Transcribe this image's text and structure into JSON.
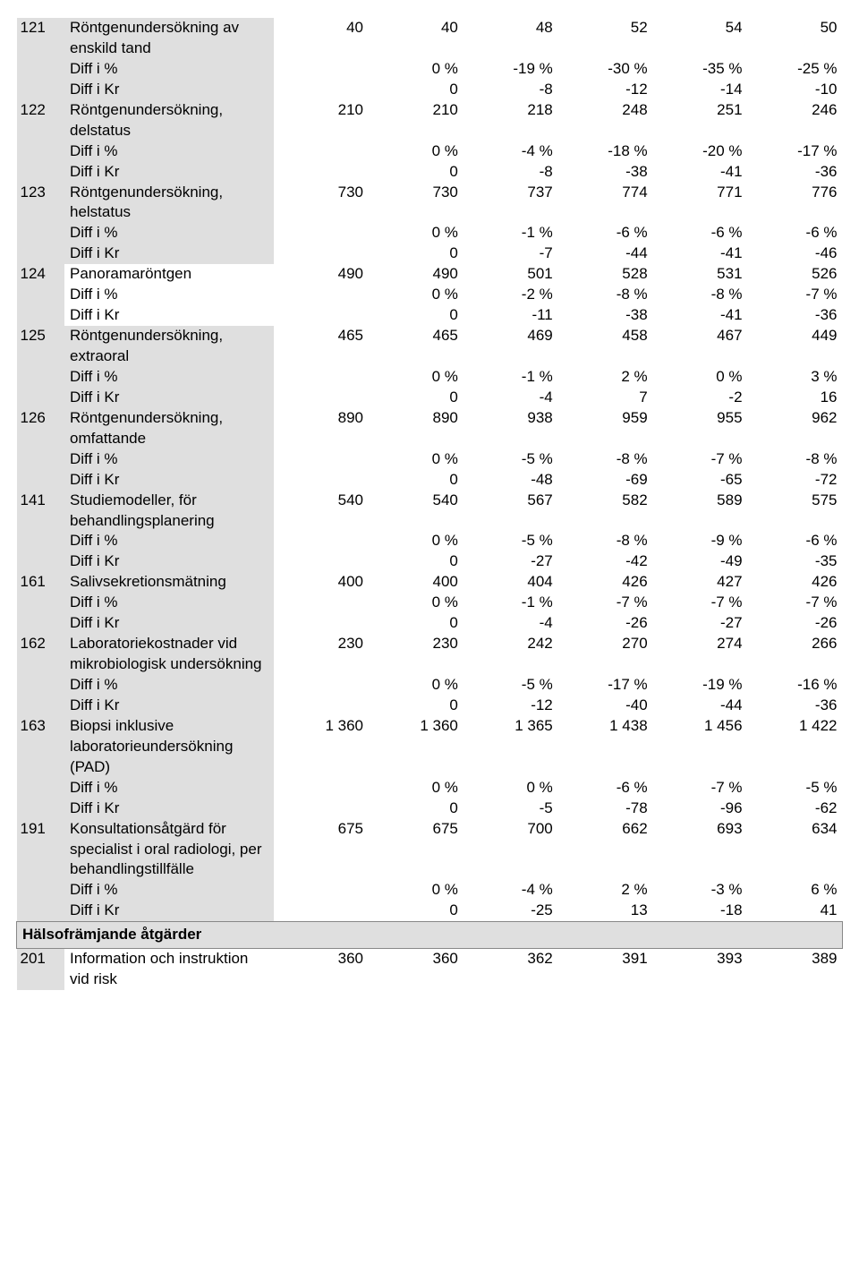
{
  "labels": {
    "diff_pct": "Diff i %",
    "diff_kr": "Diff i Kr"
  },
  "rows": [
    {
      "code": "121",
      "desc": "Röntgenundersökning av enskild tand",
      "shaded": true,
      "v": [
        "40",
        "40",
        "48",
        "52",
        "54",
        "50"
      ],
      "dp": [
        "0 %",
        "-19 %",
        "-30 %",
        "-35 %",
        "-25 %"
      ],
      "dk": [
        "0",
        "-8",
        "-12",
        "-14",
        "-10"
      ]
    },
    {
      "code": "122",
      "desc": "Röntgenundersökning, delstatus",
      "shaded": true,
      "v": [
        "210",
        "210",
        "218",
        "248",
        "251",
        "246"
      ],
      "dp": [
        "0 %",
        "-4 %",
        "-18 %",
        "-20 %",
        "-17 %"
      ],
      "dk": [
        "0",
        "-8",
        "-38",
        "-41",
        "-36"
      ]
    },
    {
      "code": "123",
      "desc": "Röntgenundersökning, helstatus",
      "shaded": true,
      "v": [
        "730",
        "730",
        "737",
        "774",
        "771",
        "776"
      ],
      "dp": [
        "0 %",
        "-1 %",
        "-6 %",
        "-6 %",
        "-6 %"
      ],
      "dk": [
        "0",
        "-7",
        "-44",
        "-41",
        "-46"
      ]
    },
    {
      "code": "124",
      "desc": "Panoramaröntgen",
      "shaded": false,
      "v": [
        "490",
        "490",
        "501",
        "528",
        "531",
        "526"
      ],
      "dp": [
        "0 %",
        "-2 %",
        "-8 %",
        "-8 %",
        "-7 %"
      ],
      "dk": [
        "0",
        "-11",
        "-38",
        "-41",
        "-36"
      ]
    },
    {
      "code": "125",
      "desc": "Röntgenundersökning, extraoral",
      "shaded": true,
      "v": [
        "465",
        "465",
        "469",
        "458",
        "467",
        "449"
      ],
      "dp": [
        "0 %",
        "-1 %",
        "2 %",
        "0 %",
        "3 %"
      ],
      "dk": [
        "0",
        "-4",
        "7",
        "-2",
        "16"
      ]
    },
    {
      "code": "126",
      "desc": "Röntgenundersökning, omfattande",
      "shaded": true,
      "v": [
        "890",
        "890",
        "938",
        "959",
        "955",
        "962"
      ],
      "dp": [
        "0 %",
        "-5 %",
        "-8 %",
        "-7 %",
        "-8 %"
      ],
      "dk": [
        "0",
        "-48",
        "-69",
        "-65",
        "-72"
      ]
    },
    {
      "code": "141",
      "desc": "Studiemodeller, för behandlingsplanering",
      "shaded": true,
      "v": [
        "540",
        "540",
        "567",
        "582",
        "589",
        "575"
      ],
      "dp": [
        "0 %",
        "-5 %",
        "-8 %",
        "-9 %",
        "-6 %"
      ],
      "dk": [
        "0",
        "-27",
        "-42",
        "-49",
        "-35"
      ]
    },
    {
      "code": "161",
      "desc": "Salivsekretionsmätning",
      "shaded": true,
      "v": [
        "400",
        "400",
        "404",
        "426",
        "427",
        "426"
      ],
      "dp": [
        "0 %",
        "-1 %",
        "-7 %",
        "-7 %",
        "-7 %"
      ],
      "dk": [
        "0",
        "-4",
        "-26",
        "-27",
        "-26"
      ]
    },
    {
      "code": "162",
      "desc": "Laboratoriekostnader vid mikrobiologisk undersökning",
      "shaded": true,
      "v": [
        "230",
        "230",
        "242",
        "270",
        "274",
        "266"
      ],
      "dp": [
        "0 %",
        "-5 %",
        "-17 %",
        "-19 %",
        "-16 %"
      ],
      "dk": [
        "0",
        "-12",
        "-40",
        "-44",
        "-36"
      ]
    },
    {
      "code": "163",
      "desc": "Biopsi inklusive laboratorieundersökning (PAD)",
      "shaded": true,
      "v": [
        "1 360",
        "1 360",
        "1 365",
        "1 438",
        "1 456",
        "1 422"
      ],
      "dp": [
        "0 %",
        "0 %",
        "-6 %",
        "-7 %",
        "-5 %"
      ],
      "dk": [
        "0",
        "-5",
        "-78",
        "-96",
        "-62"
      ]
    },
    {
      "code": "191",
      "desc": "Konsultationsåtgärd för specialist i oral radiologi, per behandlingstillfälle",
      "shaded": true,
      "v": [
        "675",
        "675",
        "700",
        "662",
        "693",
        "634"
      ],
      "dp": [
        "0 %",
        "-4 %",
        "2 %",
        "-3 %",
        "6 %"
      ],
      "dk": [
        "0",
        "-25",
        "13",
        "-18",
        "41"
      ]
    }
  ],
  "section": {
    "title": "Hälsofrämjande åtgärder"
  },
  "post_row": {
    "code": "201",
    "desc": "Information och instruktion vid risk",
    "shaded": false,
    "v": [
      "360",
      "360",
      "362",
      "391",
      "393",
      "389"
    ]
  }
}
